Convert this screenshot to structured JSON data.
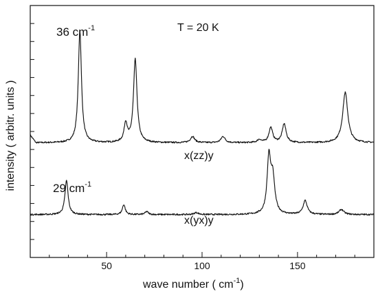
{
  "chart_data": {
    "type": "line",
    "xlabel": "wave number ( cm",
    "xlabel_sup": "-1",
    "xlabel_end": ")",
    "ylabel": "intensity ( arbitr. units )",
    "xlim": [
      10,
      190
    ],
    "ylim": [
      0,
      1
    ],
    "x_ticks": [
      50,
      100,
      150
    ],
    "y_tick_count": 14,
    "grid": false,
    "annotations": {
      "temperature": "T = 20 K",
      "peak_top_value": "36 cm",
      "peak_top_sup": "-1",
      "peak_bottom_value": "29 cm",
      "peak_bottom_sup": "-1"
    },
    "series": [
      {
        "name": "x(zz)y",
        "baseline": 0.455,
        "peaks": [
          {
            "x": 36,
            "height": 0.445,
            "width": 1.0
          },
          {
            "x": 60,
            "height": 0.075,
            "width": 1.0
          },
          {
            "x": 65,
            "height": 0.33,
            "width": 1.1
          },
          {
            "x": 95,
            "height": 0.025,
            "width": 1.3
          },
          {
            "x": 111,
            "height": 0.025,
            "width": 1.3
          },
          {
            "x": 130,
            "height": 0.012,
            "width": 1.2
          },
          {
            "x": 136,
            "height": 0.06,
            "width": 1.2
          },
          {
            "x": 143,
            "height": 0.075,
            "width": 1.2
          },
          {
            "x": 175,
            "height": 0.2,
            "width": 1.6
          }
        ]
      },
      {
        "name": "x(yx)y",
        "baseline": 0.17,
        "peaks": [
          {
            "x": 29,
            "height": 0.135,
            "width": 1.0
          },
          {
            "x": 59,
            "height": 0.04,
            "width": 0.9
          },
          {
            "x": 71,
            "height": 0.012,
            "width": 1.0
          },
          {
            "x": 97,
            "height": 0.008,
            "width": 1.3
          },
          {
            "x": 135,
            "height": 0.215,
            "width": 1.1
          },
          {
            "x": 137,
            "height": 0.14,
            "width": 1.3
          },
          {
            "x": 154,
            "height": 0.055,
            "width": 1.3
          },
          {
            "x": 173,
            "height": 0.02,
            "width": 1.5
          }
        ]
      }
    ]
  }
}
